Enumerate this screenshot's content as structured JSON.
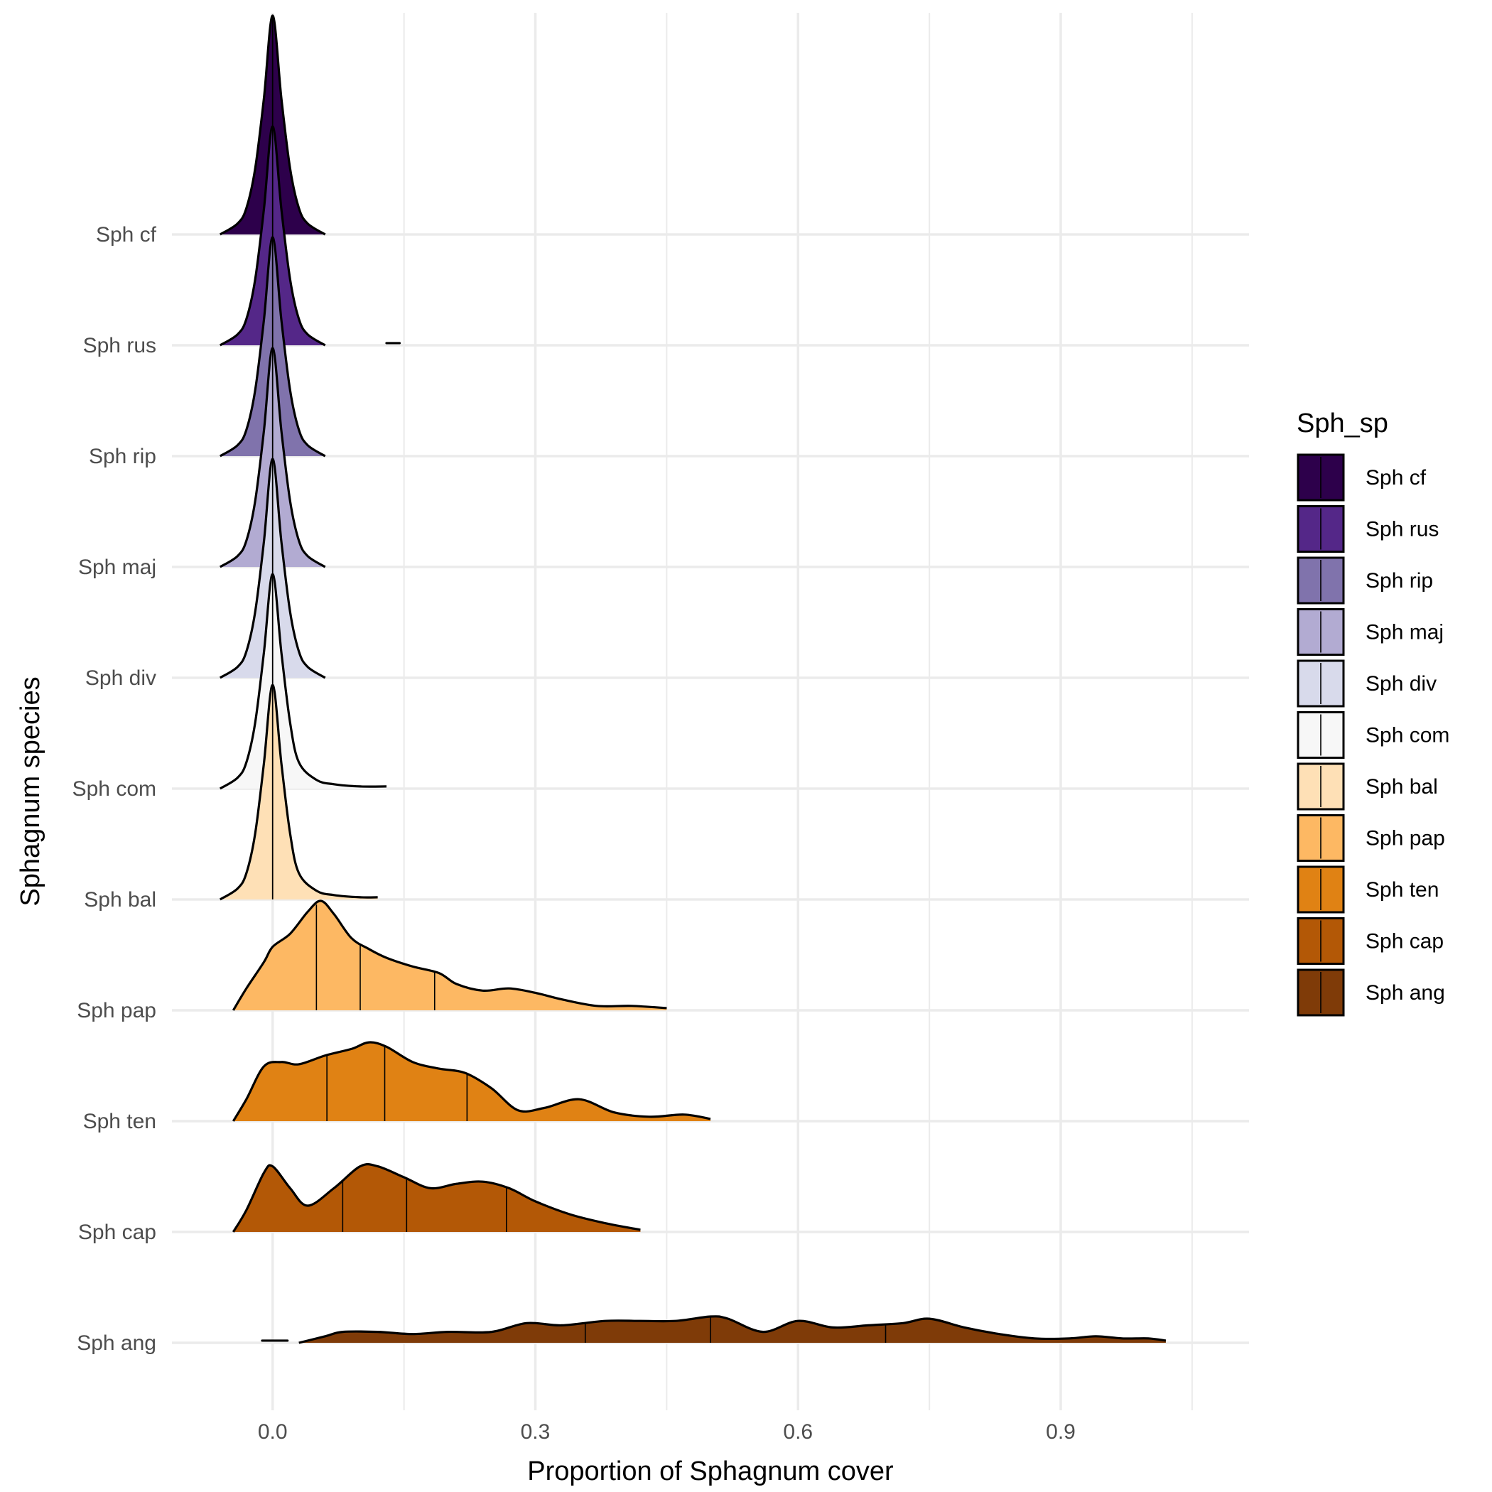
{
  "chart_data": {
    "type": "ridgeline",
    "xlabel": "Proportion of Sphagnum cover",
    "ylabel": "Sphagnum species",
    "x_ticks": [
      0.0,
      0.3,
      0.6,
      0.9
    ],
    "x_tick_labels": [
      "0.0",
      "0.3",
      "0.6",
      "0.9"
    ],
    "xlim": [
      -0.115,
      1.115
    ],
    "legend": {
      "title": "Sph_sp",
      "placement": "right"
    },
    "grid": true,
    "quantiles": [
      0.25,
      0.5,
      0.75
    ],
    "series": [
      {
        "name": "Sph cf",
        "color": "#2d004b",
        "density": [
          [
            -0.06,
            0
          ],
          [
            -0.04,
            0.05
          ],
          [
            -0.03,
            0.12
          ],
          [
            -0.02,
            0.3
          ],
          [
            -0.01,
            0.62
          ],
          [
            0,
            1
          ],
          [
            0.01,
            0.62
          ],
          [
            0.02,
            0.3
          ],
          [
            0.03,
            0.12
          ],
          [
            0.04,
            0.05
          ],
          [
            0.06,
            0
          ]
        ],
        "quantile_values": [
          0,
          0,
          0
        ]
      },
      {
        "name": "Sph rus",
        "color": "#542788",
        "density": [
          [
            -0.06,
            0
          ],
          [
            -0.04,
            0.05
          ],
          [
            -0.03,
            0.12
          ],
          [
            -0.02,
            0.3
          ],
          [
            -0.01,
            0.62
          ],
          [
            0,
            1
          ],
          [
            0.01,
            0.62
          ],
          [
            0.02,
            0.3
          ],
          [
            0.03,
            0.12
          ],
          [
            0.04,
            0.05
          ],
          [
            0.06,
            0
          ]
        ],
        "extra_segments": [
          [
            0.13,
            0.01
          ],
          [
            0.145,
            0.01
          ]
        ],
        "quantile_values": [
          0,
          0,
          0
        ]
      },
      {
        "name": "Sph rip",
        "color": "#8073ac",
        "density": [
          [
            -0.06,
            0
          ],
          [
            -0.04,
            0.05
          ],
          [
            -0.03,
            0.12
          ],
          [
            -0.02,
            0.3
          ],
          [
            -0.01,
            0.62
          ],
          [
            0,
            1
          ],
          [
            0.01,
            0.62
          ],
          [
            0.02,
            0.3
          ],
          [
            0.03,
            0.12
          ],
          [
            0.04,
            0.05
          ],
          [
            0.06,
            0
          ]
        ],
        "quantile_values": [
          0,
          0,
          0
        ]
      },
      {
        "name": "Sph maj",
        "color": "#b2abd2",
        "density": [
          [
            -0.06,
            0
          ],
          [
            -0.04,
            0.05
          ],
          [
            -0.03,
            0.12
          ],
          [
            -0.02,
            0.3
          ],
          [
            -0.01,
            0.62
          ],
          [
            0,
            1
          ],
          [
            0.01,
            0.62
          ],
          [
            0.02,
            0.3
          ],
          [
            0.03,
            0.12
          ],
          [
            0.04,
            0.05
          ],
          [
            0.06,
            0
          ]
        ],
        "quantile_values": [
          0,
          0,
          0
        ]
      },
      {
        "name": "Sph div",
        "color": "#d8daeb",
        "density": [
          [
            -0.06,
            0
          ],
          [
            -0.04,
            0.05
          ],
          [
            -0.03,
            0.12
          ],
          [
            -0.02,
            0.3
          ],
          [
            -0.01,
            0.62
          ],
          [
            0,
            1
          ],
          [
            0.01,
            0.62
          ],
          [
            0.02,
            0.3
          ],
          [
            0.03,
            0.12
          ],
          [
            0.04,
            0.05
          ],
          [
            0.06,
            0
          ]
        ],
        "quantile_values": [
          0,
          0,
          0
        ]
      },
      {
        "name": "Sph com",
        "color": "#f7f7f7",
        "density": [
          [
            -0.06,
            0
          ],
          [
            -0.04,
            0.05
          ],
          [
            -0.03,
            0.12
          ],
          [
            -0.02,
            0.3
          ],
          [
            -0.01,
            0.62
          ],
          [
            0,
            0.98
          ],
          [
            0.01,
            0.62
          ],
          [
            0.02,
            0.3
          ],
          [
            0.03,
            0.12
          ],
          [
            0.05,
            0.04
          ],
          [
            0.07,
            0.02
          ],
          [
            0.1,
            0.01
          ],
          [
            0.13,
            0.01
          ]
        ],
        "quantile_values": [
          0,
          0,
          0
        ]
      },
      {
        "name": "Sph bal",
        "color": "#fee0b6",
        "density": [
          [
            -0.06,
            0
          ],
          [
            -0.04,
            0.05
          ],
          [
            -0.03,
            0.12
          ],
          [
            -0.02,
            0.3
          ],
          [
            -0.01,
            0.62
          ],
          [
            0,
            0.98
          ],
          [
            0.01,
            0.62
          ],
          [
            0.02,
            0.3
          ],
          [
            0.03,
            0.12
          ],
          [
            0.05,
            0.04
          ],
          [
            0.07,
            0.02
          ],
          [
            0.1,
            0.01
          ],
          [
            0.12,
            0.01
          ]
        ],
        "quantile_values": [
          0,
          0,
          0
        ]
      },
      {
        "name": "Sph pap",
        "color": "#fdb863",
        "density": [
          [
            -0.045,
            0
          ],
          [
            -0.03,
            0.1
          ],
          [
            -0.01,
            0.22
          ],
          [
            0,
            0.29
          ],
          [
            0.02,
            0.35
          ],
          [
            0.04,
            0.45
          ],
          [
            0.055,
            0.5
          ],
          [
            0.07,
            0.44
          ],
          [
            0.09,
            0.33
          ],
          [
            0.11,
            0.28
          ],
          [
            0.13,
            0.24
          ],
          [
            0.16,
            0.2
          ],
          [
            0.19,
            0.17
          ],
          [
            0.21,
            0.12
          ],
          [
            0.24,
            0.09
          ],
          [
            0.27,
            0.1
          ],
          [
            0.3,
            0.08
          ],
          [
            0.33,
            0.05
          ],
          [
            0.37,
            0.02
          ],
          [
            0.41,
            0.02
          ],
          [
            0.45,
            0.01
          ]
        ],
        "quantile_values": [
          0.05,
          0.1,
          0.185
        ]
      },
      {
        "name": "Sph ten",
        "color": "#e08214",
        "density": [
          [
            -0.045,
            0
          ],
          [
            -0.03,
            0.1
          ],
          [
            -0.01,
            0.25
          ],
          [
            0.01,
            0.27
          ],
          [
            0.03,
            0.26
          ],
          [
            0.06,
            0.3
          ],
          [
            0.09,
            0.33
          ],
          [
            0.11,
            0.36
          ],
          [
            0.13,
            0.34
          ],
          [
            0.16,
            0.27
          ],
          [
            0.19,
            0.24
          ],
          [
            0.22,
            0.22
          ],
          [
            0.25,
            0.15
          ],
          [
            0.28,
            0.05
          ],
          [
            0.31,
            0.06
          ],
          [
            0.35,
            0.1
          ],
          [
            0.39,
            0.04
          ],
          [
            0.43,
            0.02
          ],
          [
            0.47,
            0.03
          ],
          [
            0.5,
            0.01
          ]
        ],
        "quantile_values": [
          0.062,
          0.128,
          0.222
        ]
      },
      {
        "name": "Sph cap",
        "color": "#b35806",
        "density": [
          [
            -0.045,
            0
          ],
          [
            -0.03,
            0.1
          ],
          [
            -0.01,
            0.27
          ],
          [
            0,
            0.3
          ],
          [
            0.02,
            0.2
          ],
          [
            0.04,
            0.12
          ],
          [
            0.07,
            0.2
          ],
          [
            0.1,
            0.3
          ],
          [
            0.12,
            0.3
          ],
          [
            0.15,
            0.25
          ],
          [
            0.18,
            0.2
          ],
          [
            0.21,
            0.22
          ],
          [
            0.24,
            0.23
          ],
          [
            0.27,
            0.2
          ],
          [
            0.3,
            0.14
          ],
          [
            0.34,
            0.08
          ],
          [
            0.38,
            0.04
          ],
          [
            0.42,
            0.01
          ]
        ],
        "quantile_values": [
          0.08,
          0.153,
          0.267
        ]
      },
      {
        "name": "Sph ang",
        "color": "#7f3b08",
        "density": [
          [
            0.03,
            0
          ],
          [
            0.06,
            0.03
          ],
          [
            0.08,
            0.05
          ],
          [
            0.12,
            0.05
          ],
          [
            0.16,
            0.04
          ],
          [
            0.2,
            0.05
          ],
          [
            0.25,
            0.05
          ],
          [
            0.29,
            0.09
          ],
          [
            0.33,
            0.08
          ],
          [
            0.38,
            0.1
          ],
          [
            0.42,
            0.1
          ],
          [
            0.46,
            0.1
          ],
          [
            0.5,
            0.12
          ],
          [
            0.52,
            0.11
          ],
          [
            0.56,
            0.05
          ],
          [
            0.6,
            0.1
          ],
          [
            0.64,
            0.07
          ],
          [
            0.68,
            0.08
          ],
          [
            0.72,
            0.09
          ],
          [
            0.75,
            0.11
          ],
          [
            0.79,
            0.07
          ],
          [
            0.83,
            0.04
          ],
          [
            0.87,
            0.02
          ],
          [
            0.91,
            0.02
          ],
          [
            0.94,
            0.03
          ],
          [
            0.97,
            0.02
          ],
          [
            1.0,
            0.02
          ],
          [
            1.02,
            0.01
          ]
        ],
        "extra_segments": [
          [
            -0.012,
            0.01
          ],
          [
            0.017,
            0.01
          ]
        ],
        "quantile_values": [
          0.357,
          0.5,
          0.7
        ]
      }
    ]
  }
}
